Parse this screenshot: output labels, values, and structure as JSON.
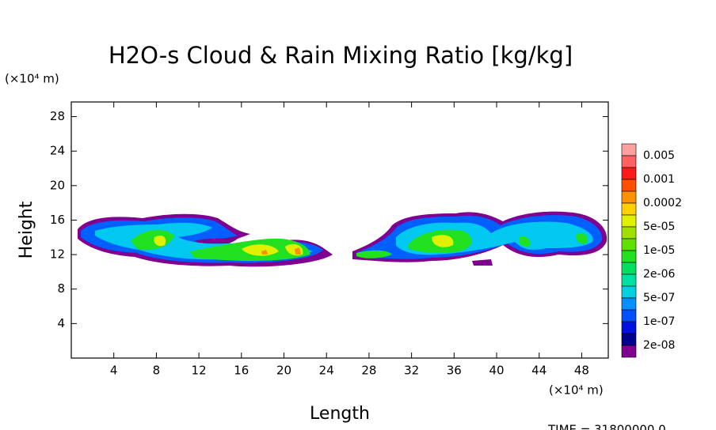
{
  "chart_data": {
    "type": "contour",
    "title": "H2O-s Cloud & Rain Mixing Ratio [kg/kg]",
    "x_label": "Length",
    "y_label": "Height",
    "x_unit": "(×10⁴ m)",
    "y_unit": "(×10⁴ m)",
    "xlim": [
      0,
      50.5
    ],
    "ylim": [
      0,
      29.7
    ],
    "xticks": [
      4,
      8,
      12,
      16,
      20,
      24,
      28,
      32,
      36,
      40,
      44,
      48
    ],
    "yticks": [
      4,
      8,
      12,
      16,
      20,
      24,
      28
    ],
    "colorbar": {
      "colors": [
        "#ffa0a0",
        "#ff6060",
        "#ff1a1a",
        "#ff5000",
        "#ff9000",
        "#ffd000",
        "#e0f000",
        "#a0e000",
        "#60e000",
        "#20e020",
        "#00e060",
        "#00e0a0",
        "#00d0e0",
        "#0090ff",
        "#0050ff",
        "#0010e0",
        "#000090",
        "#800090"
      ],
      "labels": [
        "0.005",
        "0.001",
        "0.0002",
        "5e-05",
        "1e-05",
        "2e-06",
        "5e-07",
        "1e-07",
        "2e-08"
      ]
    },
    "footer": "TIME = 31800000.0"
  }
}
